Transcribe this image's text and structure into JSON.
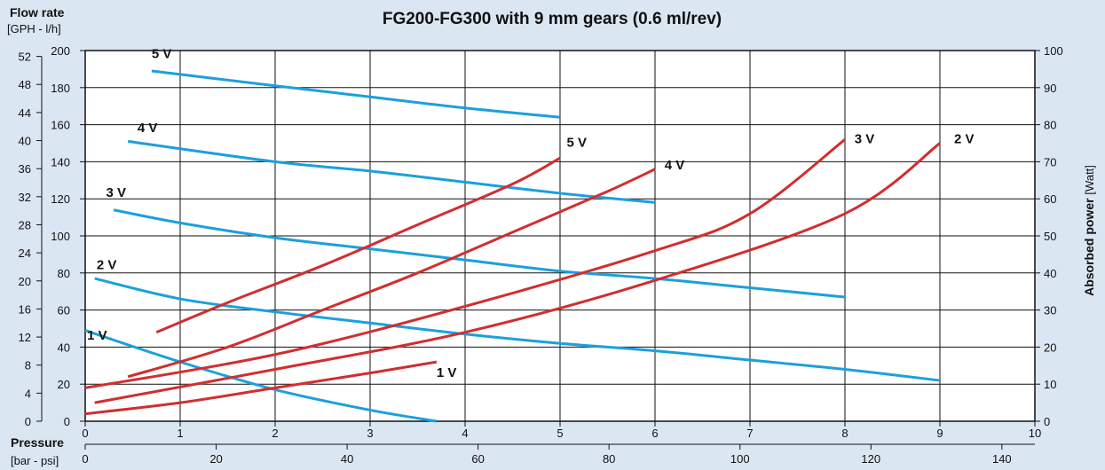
{
  "chart_data": {
    "type": "line",
    "title": "FG200-FG300 with 9 mm gears (0.6 ml/rev)",
    "left_axis": {
      "title": "Flow rate",
      "units": "[GPH - l/h]",
      "lh_ticks": [
        0,
        20,
        40,
        60,
        80,
        100,
        120,
        140,
        160,
        180,
        200
      ],
      "gph_ticks": [
        0,
        4,
        8,
        12,
        16,
        20,
        24,
        28,
        32,
        36,
        40,
        44,
        48,
        52
      ],
      "ylim_lh": [
        0,
        200
      ]
    },
    "right_axis": {
      "title": "Absorbed power",
      "units": "[Watt]",
      "ticks": [
        0,
        10,
        20,
        30,
        40,
        50,
        60,
        70,
        80,
        90,
        100
      ],
      "ylim": [
        0,
        100
      ]
    },
    "x_axis": {
      "title": "Pressure",
      "units": "[bar - psi]",
      "bar_ticks": [
        0,
        1,
        2,
        3,
        4,
        5,
        6,
        7,
        8,
        9,
        10
      ],
      "psi_ticks": [
        0,
        20,
        40,
        60,
        80,
        100,
        120,
        140
      ],
      "xlim_bar": [
        0,
        10
      ]
    },
    "grid": true,
    "flow_series": [
      {
        "name": "5 V",
        "color": "#1ba0dc",
        "x": [
          0.7,
          2.0,
          3.0,
          4.0,
          5.0
        ],
        "y": [
          189,
          181,
          175,
          169,
          164
        ]
      },
      {
        "name": "4 V",
        "color": "#1ba0dc",
        "x": [
          0.45,
          2.0,
          3.0,
          4.0,
          5.0,
          6.0
        ],
        "y": [
          151,
          140,
          135,
          129,
          123,
          118
        ]
      },
      {
        "name": "3 V",
        "color": "#1ba0dc",
        "x": [
          0.3,
          1.0,
          2.0,
          3.0,
          4.0,
          5.0,
          6.0,
          7.0,
          8.0
        ],
        "y": [
          114,
          107,
          99,
          93,
          87,
          81,
          77,
          72,
          67
        ]
      },
      {
        "name": "2 V",
        "color": "#1ba0dc",
        "x": [
          0.1,
          1.0,
          2.0,
          3.0,
          4.0,
          5.0,
          6.0,
          7.0,
          8.0,
          9.0
        ],
        "y": [
          77,
          66,
          59,
          53,
          47,
          42,
          38,
          33,
          28,
          22
        ]
      },
      {
        "name": "1 V",
        "color": "#1ba0dc",
        "x": [
          0.0,
          1.0,
          2.0,
          3.0,
          3.7
        ],
        "y": [
          49,
          32,
          17,
          6,
          0
        ]
      }
    ],
    "power_series": [
      {
        "name": "5 V",
        "color": "#d12e2e",
        "x": [
          0.75,
          1.5,
          2.5,
          3.5,
          4.5,
          5.0
        ],
        "y": [
          24,
          32,
          42,
          53,
          64,
          71
        ]
      },
      {
        "name": "4 V",
        "color": "#d12e2e",
        "x": [
          0.45,
          1.5,
          2.5,
          3.5,
          4.5,
          5.5,
          6.0
        ],
        "y": [
          12,
          20,
          30,
          40,
          51,
          62,
          68
        ]
      },
      {
        "name": "3 V",
        "color": "#d12e2e",
        "x": [
          0.0,
          2.0,
          4.0,
          6.0,
          7.0,
          8.0
        ],
        "y": [
          9,
          18,
          31,
          46,
          56,
          76
        ]
      },
      {
        "name": "2 V",
        "color": "#d12e2e",
        "x": [
          0.1,
          2.0,
          4.0,
          6.0,
          8.0,
          9.0
        ],
        "y": [
          5,
          14,
          24,
          38,
          56,
          75
        ]
      },
      {
        "name": "1 V",
        "color": "#d12e2e",
        "x": [
          0.0,
          1.0,
          2.0,
          3.0,
          3.7
        ],
        "y": [
          2,
          5,
          9,
          13,
          16
        ]
      }
    ],
    "labels": [
      {
        "text": "5 V",
        "x": 0.7,
        "lh": 196
      },
      {
        "text": "4 V",
        "x": 0.55,
        "lh": 156
      },
      {
        "text": "3 V",
        "x": 0.22,
        "lh": 121
      },
      {
        "text": "2 V",
        "x": 0.12,
        "lh": 82
      },
      {
        "text": "1 V",
        "x": 0.02,
        "lh": 44
      },
      {
        "text": "5 V",
        "x": 5.07,
        "pw": 74
      },
      {
        "text": "4 V",
        "x": 6.1,
        "pw": 68
      },
      {
        "text": "3 V",
        "x": 8.1,
        "pw": 75
      },
      {
        "text": "2 V",
        "x": 9.15,
        "pw": 75
      },
      {
        "text": "1 V",
        "x": 3.7,
        "pw": 12
      }
    ]
  }
}
